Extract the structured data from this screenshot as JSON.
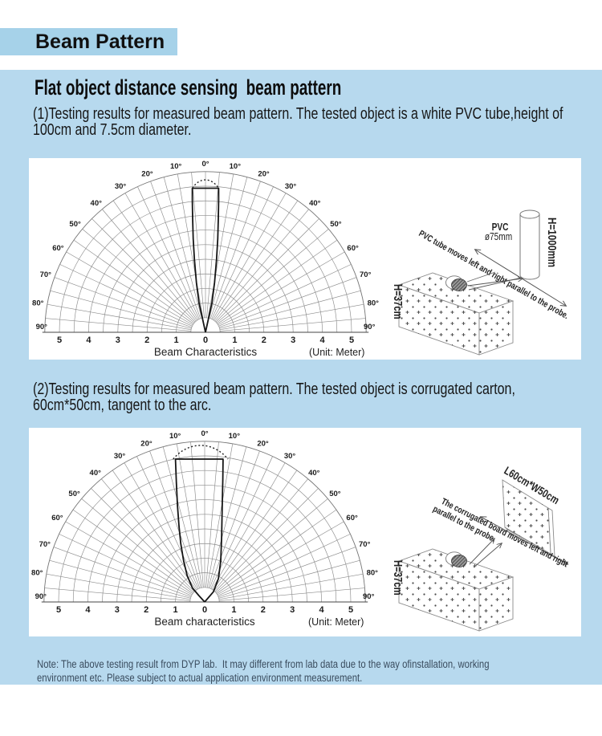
{
  "banner": {
    "title": "Beam Pattern"
  },
  "colors": {
    "banner_bg": "#a6d2e9",
    "panel_bg": "#b7d9ee",
    "card_bg": "#ffffff",
    "grid": "#8c8c8c",
    "beam": "#151515",
    "note_text": "#3a4c5e"
  },
  "intro": {
    "heading": "Flat object distance sensing  beam pattern",
    "para1": "(1)Testing results for measured beam pattern. The tested object is a white PVC tube,height of\n100cm and 7.5cm diameter.",
    "para2": "(2)Testing results for measured beam pattern. The tested object is corrugated carton,\n60cm*50cm, tangent to the arc."
  },
  "note": "Note: The above testing result from DYP lab.  It may different from lab data due to the way ofinstallation, working\nenvironment etc. Please subject to actual application environment measurement.",
  "chart_data": [
    {
      "type": "polar-beam",
      "title": "Beam Characteristics",
      "unit_label": "(Unit: Meter)",
      "degree_labels": [
        0,
        10,
        20,
        30,
        40,
        50,
        60,
        70,
        80,
        90
      ],
      "degree_symbol": "°",
      "spoke_step_deg": 5,
      "rings_m": {
        "min": 0.5,
        "max": 5.5,
        "step": 0.5
      },
      "axis_ticks_m": [
        0,
        1,
        2,
        3,
        4,
        5
      ],
      "beam_outline_m": [
        [
          0,
          0
        ],
        [
          -0.1,
          0.45
        ],
        [
          -0.22,
          1.0
        ],
        [
          -0.31,
          1.7
        ],
        [
          -0.38,
          2.5
        ],
        [
          -0.42,
          3.2
        ],
        [
          -0.44,
          3.9
        ],
        [
          -0.45,
          4.5
        ],
        [
          -0.45,
          4.93
        ],
        [
          0.45,
          4.93
        ],
        [
          0.45,
          4.5
        ],
        [
          0.44,
          3.9
        ],
        [
          0.42,
          3.2
        ],
        [
          0.38,
          2.5
        ],
        [
          0.31,
          1.7
        ],
        [
          0.22,
          1.0
        ],
        [
          0.1,
          0.45
        ],
        [
          0,
          0
        ]
      ],
      "dashed_cap": {
        "from": [
          -0.45,
          4.93
        ],
        "to": [
          0.45,
          4.93
        ],
        "peak_m": 5.22
      }
    },
    {
      "type": "polar-beam",
      "title": "Beam characteristics",
      "unit_label": "(Unit: Meter)",
      "degree_labels": [
        0,
        10,
        20,
        30,
        40,
        50,
        60,
        70,
        80,
        90
      ],
      "degree_symbol": "°",
      "spoke_step_deg": 5,
      "rings_m": {
        "min": 0.5,
        "max": 5.5,
        "step": 0.5
      },
      "axis_ticks_m": [
        0,
        1,
        2,
        3,
        4,
        5
      ],
      "beam_outline_m": [
        [
          0,
          0
        ],
        [
          -0.2,
          0.22
        ],
        [
          -0.42,
          0.48
        ],
        [
          -0.6,
          0.9
        ],
        [
          -0.72,
          1.4
        ],
        [
          -0.82,
          2.0
        ],
        [
          -0.88,
          2.6
        ],
        [
          -0.93,
          3.3
        ],
        [
          -0.97,
          4.1
        ],
        [
          -1.0,
          4.89
        ],
        [
          0.63,
          4.89
        ],
        [
          0.62,
          4.2
        ],
        [
          0.6,
          3.2
        ],
        [
          0.58,
          2.2
        ],
        [
          0.55,
          1.4
        ],
        [
          0.47,
          0.8
        ],
        [
          0.3,
          0.35
        ],
        [
          0,
          0
        ]
      ],
      "dashed_cap": {
        "from": [
          -1.08,
          4.89
        ],
        "to": [
          0.8,
          4.89
        ],
        "peak_m": 5.36
      }
    }
  ],
  "illustrations": [
    {
      "pvc_label": "PVC",
      "diameter_label": "ø75mm",
      "tube_height_label": "H=1000mm",
      "box_height_label": "H=37cm",
      "move_text": "PVC tube moves left and right parallel to the probe."
    },
    {
      "board_label": "L60cm*W50cm",
      "box_height_label": "H=37cm",
      "move_text_line1": "The corrugated board moves left and right",
      "move_text_line2": "parallel to the probe."
    }
  ]
}
